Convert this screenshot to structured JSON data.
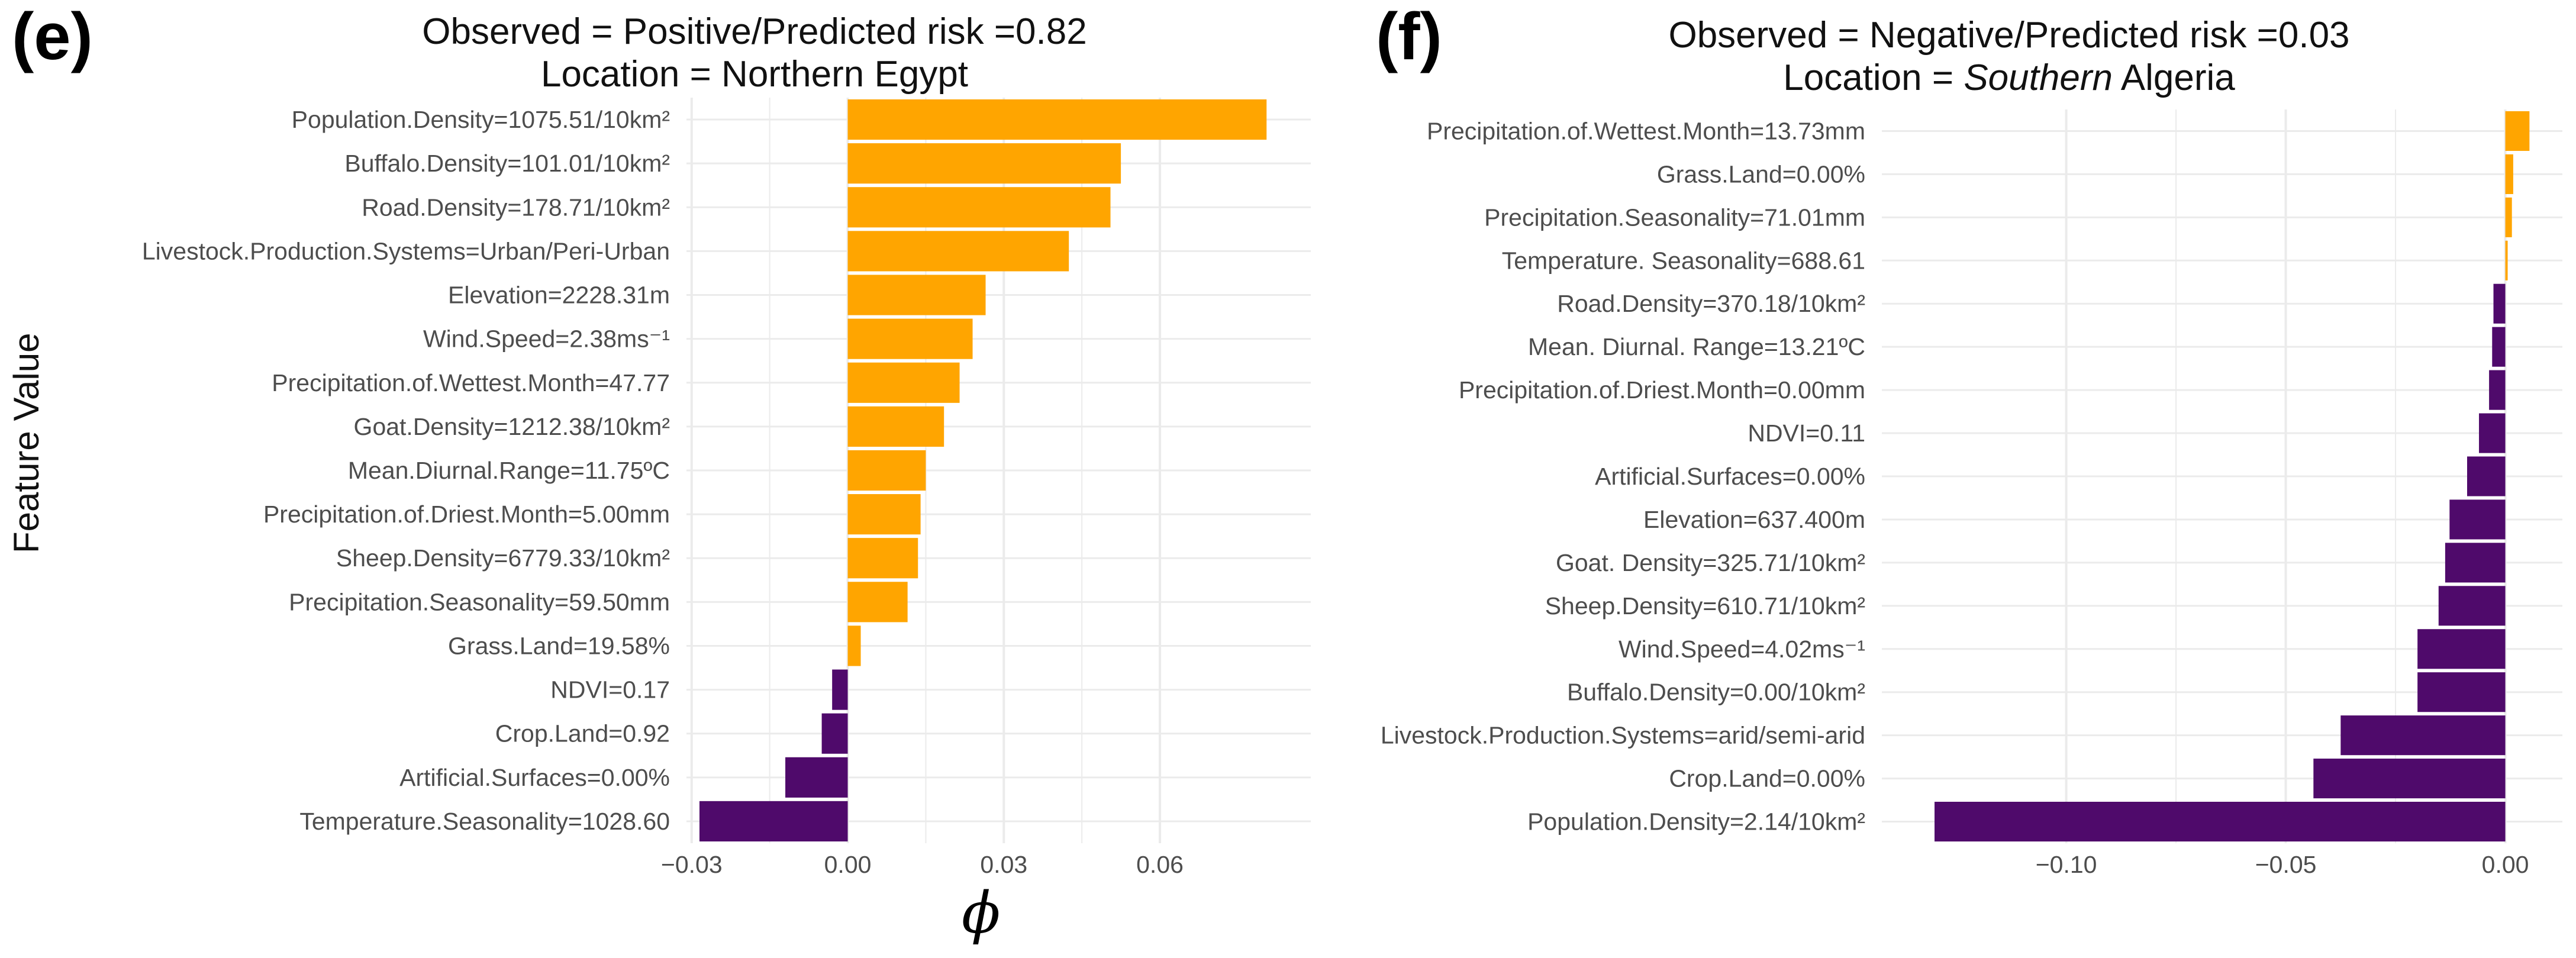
{
  "y_axis_label": "Feature Value",
  "x_axis_symbol": "ϕ",
  "colors": {
    "positive": "#FFA500",
    "negative": "#4F0A6B",
    "grid": "#EBEBEB",
    "zero_line": "#333333"
  },
  "chart_data": [
    {
      "type": "bar",
      "panel": "(e)",
      "title": "Observed = Positive/Predicted risk =0.82",
      "subtitle_prefix": "Location = ",
      "subtitle_place": "Northern Egypt",
      "subtitle_suffix": "",
      "xlim": [
        -0.031,
        0.089
      ],
      "xticks": [
        -0.03,
        0.0,
        0.03,
        0.06
      ],
      "xtick_labels": [
        "−0.03",
        "0.00",
        "0.03",
        "0.06"
      ],
      "categories": [
        "Population.Density=1075.51/10km²",
        "Buffalo.Density=101.01/10km²",
        "Road.Density=178.71/10km²",
        "Livestock.Production.Systems=Urban/Peri-Urban",
        "Elevation=2228.31m",
        "Wind.Speed=2.38ms⁻¹",
        "Precipitation.of.Wettest.Month=47.77",
        "Goat.Density=1212.38/10km²",
        "Mean.Diurnal.Range=11.75ºC",
        "Precipitation.of.Driest.Month=5.00mm",
        "Sheep.Density=6779.33/10km²",
        "Precipitation.Seasonality=59.50mm",
        "Grass.Land=19.58%",
        "NDVI=0.17",
        "Crop.Land=0.92",
        "Artificial.Surfaces=0.00%",
        "Temperature.Seasonality=1028.60"
      ],
      "values": [
        0.0805,
        0.0525,
        0.0505,
        0.0425,
        0.0265,
        0.024,
        0.0215,
        0.0185,
        0.015,
        0.014,
        0.0135,
        0.0115,
        0.0025,
        -0.003,
        -0.005,
        -0.012,
        -0.0285
      ]
    },
    {
      "type": "bar",
      "panel": "(f)",
      "title": "Observed = Negative/Predicted risk =0.03",
      "subtitle_prefix": "Location = ",
      "subtitle_place": "Southern",
      "subtitle_suffix": " Algeria",
      "xlim": [
        -0.142,
        0.013
      ],
      "xticks": [
        -0.1,
        -0.05,
        0.0
      ],
      "xtick_labels": [
        "−0.10",
        "−0.05",
        "0.00"
      ],
      "categories": [
        "Precipitation.of.Wettest.Month=13.73mm",
        "Grass.Land=0.00%",
        "Precipitation.Seasonality=71.01mm",
        "Temperature. Seasonality=688.61",
        "Road.Density=370.18/10km²",
        "Mean. Diurnal. Range=13.21ºC",
        "Precipitation.of.Driest.Month=0.00mm",
        "NDVI=0.11",
        "Artificial.Surfaces=0.00%",
        "Elevation=637.400m",
        "Goat. Density=325.71/10km²",
        "Sheep.Density=610.71/10km²",
        "Wind.Speed=4.02ms⁻¹",
        "Buffalo.Density=0.00/10km²",
        "Livestock.Production.Systems=arid/semi-arid",
        "Crop.Land=0.00%",
        "Population.Density=2.14/10km²"
      ],
      "values": [
        0.0055,
        0.0018,
        0.0015,
        0.0002,
        -0.0027,
        -0.003,
        -0.0037,
        -0.006,
        -0.0087,
        -0.0127,
        -0.0137,
        -0.0152,
        -0.02,
        -0.02,
        -0.0375,
        -0.0437,
        -0.13
      ]
    }
  ]
}
